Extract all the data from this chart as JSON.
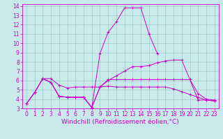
{
  "xlabel": "Windchill (Refroidissement éolien,°C)",
  "bg_color": "#c8eaea",
  "grid_color": "#a0cccc",
  "line_color": "#cc00cc",
  "xlim": [
    -0.5,
    23.5
  ],
  "ylim": [
    3,
    14.2
  ],
  "yticks": [
    3,
    4,
    5,
    6,
    7,
    8,
    9,
    10,
    11,
    12,
    13,
    14
  ],
  "xticks": [
    0,
    1,
    2,
    3,
    4,
    5,
    6,
    7,
    8,
    9,
    10,
    11,
    12,
    13,
    14,
    15,
    16,
    17,
    18,
    19,
    20,
    21,
    22,
    23
  ],
  "lines": [
    {
      "x": [
        0,
        1,
        2,
        3,
        4,
        5,
        6,
        7,
        8,
        9,
        10,
        11,
        12,
        13,
        14,
        15,
        16,
        17,
        18,
        19,
        20,
        21,
        22,
        23
      ],
      "y": [
        3.5,
        4.7,
        6.2,
        5.8,
        4.3,
        4.2,
        4.2,
        4.2,
        3.1,
        8.9,
        11.2,
        12.3,
        13.8,
        13.8,
        13.8,
        11.0,
        8.9,
        null,
        null,
        null,
        null,
        null,
        null,
        null
      ]
    },
    {
      "x": [
        0,
        1,
        2,
        3,
        4,
        5,
        6,
        7,
        8,
        9,
        10,
        11,
        12,
        13,
        14,
        15,
        16,
        17,
        18,
        19,
        20,
        21,
        22,
        23
      ],
      "y": [
        3.5,
        4.7,
        6.2,
        6.2,
        5.5,
        5.2,
        5.3,
        5.3,
        5.3,
        5.3,
        6.0,
        6.5,
        7.0,
        7.5,
        7.5,
        7.6,
        7.9,
        8.1,
        8.2,
        8.2,
        6.1,
        4.6,
        4.0,
        3.9
      ]
    },
    {
      "x": [
        0,
        1,
        2,
        3,
        4,
        5,
        6,
        7,
        8,
        9,
        10,
        11,
        12,
        13,
        14,
        15,
        16,
        17,
        18,
        19,
        20,
        21,
        22,
        23
      ],
      "y": [
        3.5,
        4.7,
        6.2,
        5.8,
        4.3,
        4.2,
        4.2,
        4.2,
        3.1,
        5.3,
        6.1,
        6.1,
        6.1,
        6.1,
        6.1,
        6.1,
        6.1,
        6.1,
        6.1,
        6.1,
        6.1,
        3.9,
        3.9,
        3.8
      ]
    },
    {
      "x": [
        2,
        3,
        4,
        5,
        6,
        7,
        8,
        9,
        10,
        11,
        12,
        13,
        14,
        15,
        16,
        17,
        18,
        19,
        20,
        21,
        22,
        23
      ],
      "y": [
        6.2,
        5.8,
        4.3,
        4.2,
        4.2,
        4.2,
        3.1,
        5.3,
        5.4,
        5.3,
        5.3,
        5.3,
        5.3,
        5.3,
        5.3,
        5.3,
        5.1,
        4.8,
        4.5,
        4.2,
        3.9,
        3.8
      ]
    }
  ],
  "tick_fontsize": 5.5,
  "xlabel_fontsize": 6.5
}
